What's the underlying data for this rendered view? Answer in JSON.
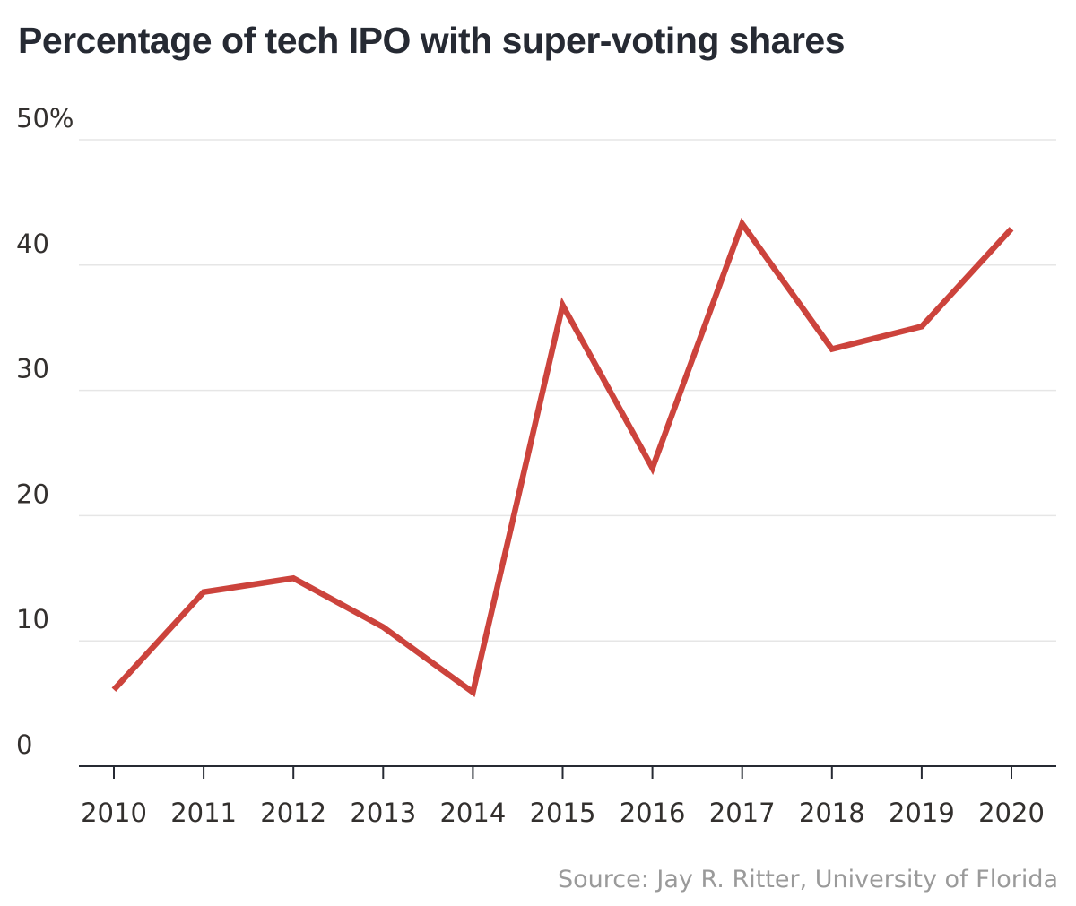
{
  "chart_data": {
    "type": "line",
    "title": "Percentage of tech IPO with super-voting shares",
    "xlabel": "",
    "ylabel": "",
    "x": [
      "2010",
      "2011",
      "2012",
      "2013",
      "2014",
      "2015",
      "2016",
      "2017",
      "2018",
      "2019",
      "2020"
    ],
    "series": [
      {
        "values": [
          6.1,
          13.9,
          15.0,
          11.1,
          5.9,
          36.8,
          23.8,
          43.3,
          33.3,
          35.1,
          42.9
        ],
        "color": "#cc433c"
      }
    ],
    "ylim": [
      0,
      50
    ],
    "yticks": [
      0,
      10,
      20,
      30,
      40,
      50
    ],
    "ytick_labels": [
      "0",
      "10",
      "20",
      "30",
      "40",
      "50%"
    ],
    "grid": true,
    "legend": "none",
    "source": "Source: Jay R. Ritter, University of Florida"
  }
}
